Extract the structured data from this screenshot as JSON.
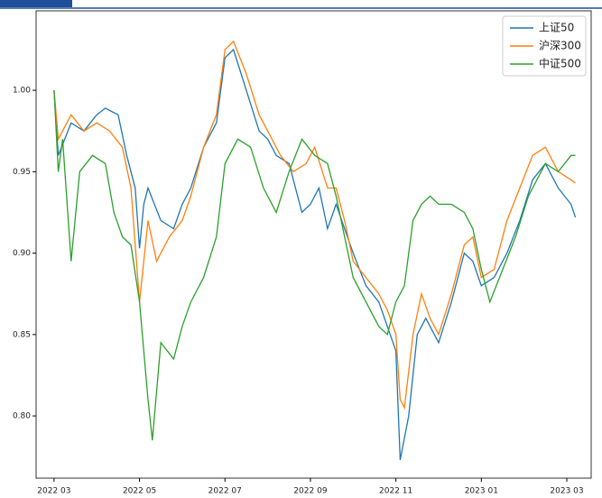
{
  "chart_data": {
    "type": "line",
    "xlim": [
      2.58,
      15.57
    ],
    "xticks": [
      {
        "value": 3,
        "label": "2022 03"
      },
      {
        "value": 5,
        "label": "2022 05"
      },
      {
        "value": 7,
        "label": "2022 07"
      },
      {
        "value": 9,
        "label": "2022 09"
      },
      {
        "value": 11,
        "label": "2022 11"
      },
      {
        "value": 13,
        "label": "2023 01"
      },
      {
        "value": 15,
        "label": "2023 03"
      }
    ],
    "ylim": [
      0.7618,
      1.0488
    ],
    "yticks": [
      {
        "value": 0.8,
        "label": "0.80"
      },
      {
        "value": 0.85,
        "label": "0.85"
      },
      {
        "value": 0.9,
        "label": "0.90"
      },
      {
        "value": 0.95,
        "label": "0.95"
      },
      {
        "value": 1.0,
        "label": "1.00"
      }
    ],
    "legend": "upper right",
    "series": [
      {
        "name": "上证50",
        "color": "#1f77b4",
        "x": [
          3.0,
          3.1,
          3.4,
          3.7,
          4.0,
          4.2,
          4.5,
          4.7,
          4.9,
          5.0,
          5.1,
          5.2,
          5.5,
          5.8,
          6.0,
          6.2,
          6.5,
          6.8,
          7.0,
          7.2,
          7.5,
          7.8,
          8.0,
          8.2,
          8.5,
          8.8,
          9.0,
          9.2,
          9.4,
          9.6,
          9.8,
          10.0,
          10.3,
          10.6,
          10.8,
          11.0,
          11.1,
          11.3,
          11.5,
          11.7,
          12.0,
          12.3,
          12.6,
          12.8,
          13.0,
          13.3,
          13.6,
          13.9,
          14.2,
          14.5,
          14.8,
          15.1,
          15.2
        ],
        "values": [
          1.0,
          0.96,
          0.98,
          0.975,
          0.985,
          0.989,
          0.985,
          0.96,
          0.94,
          0.903,
          0.93,
          0.94,
          0.92,
          0.915,
          0.93,
          0.94,
          0.965,
          0.98,
          1.02,
          1.025,
          1.0,
          0.975,
          0.97,
          0.96,
          0.955,
          0.925,
          0.93,
          0.94,
          0.915,
          0.93,
          0.915,
          0.9,
          0.88,
          0.87,
          0.855,
          0.84,
          0.773,
          0.8,
          0.85,
          0.86,
          0.845,
          0.87,
          0.9,
          0.895,
          0.88,
          0.885,
          0.9,
          0.92,
          0.945,
          0.955,
          0.94,
          0.93,
          0.922
        ]
      },
      {
        "name": "沪深300",
        "color": "#ff7f0e",
        "x": [
          3.0,
          3.1,
          3.4,
          3.7,
          4.0,
          4.3,
          4.6,
          4.8,
          5.0,
          5.2,
          5.4,
          5.7,
          6.0,
          6.2,
          6.5,
          6.8,
          7.0,
          7.2,
          7.5,
          7.8,
          8.0,
          8.3,
          8.6,
          8.9,
          9.1,
          9.4,
          9.6,
          9.8,
          10.0,
          10.3,
          10.6,
          10.8,
          11.0,
          11.1,
          11.2,
          11.4,
          11.6,
          11.8,
          12.0,
          12.3,
          12.6,
          12.8,
          13.0,
          13.3,
          13.6,
          13.9,
          14.2,
          14.5,
          14.8,
          15.1,
          15.2
        ],
        "values": [
          1.0,
          0.97,
          0.985,
          0.975,
          0.98,
          0.975,
          0.965,
          0.94,
          0.87,
          0.92,
          0.895,
          0.91,
          0.92,
          0.935,
          0.965,
          0.985,
          1.025,
          1.03,
          1.01,
          0.985,
          0.975,
          0.96,
          0.95,
          0.955,
          0.965,
          0.94,
          0.94,
          0.92,
          0.895,
          0.885,
          0.875,
          0.865,
          0.85,
          0.81,
          0.805,
          0.85,
          0.875,
          0.86,
          0.85,
          0.875,
          0.905,
          0.91,
          0.885,
          0.89,
          0.92,
          0.94,
          0.96,
          0.965,
          0.95,
          0.945,
          0.943
        ]
      },
      {
        "name": "中证500",
        "color": "#2ca02c",
        "x": [
          3.0,
          3.1,
          3.2,
          3.4,
          3.6,
          3.9,
          4.2,
          4.4,
          4.6,
          4.8,
          5.0,
          5.2,
          5.3,
          5.5,
          5.8,
          6.0,
          6.2,
          6.5,
          6.8,
          7.0,
          7.3,
          7.6,
          7.9,
          8.2,
          8.5,
          8.8,
          9.1,
          9.4,
          9.6,
          9.8,
          10.0,
          10.3,
          10.6,
          10.8,
          11.0,
          11.2,
          11.4,
          11.6,
          11.8,
          12.0,
          12.3,
          12.6,
          12.8,
          13.0,
          13.2,
          13.5,
          13.8,
          14.1,
          14.5,
          14.8,
          15.1,
          15.2
        ],
        "values": [
          1.0,
          0.95,
          0.97,
          0.895,
          0.95,
          0.96,
          0.955,
          0.925,
          0.91,
          0.905,
          0.87,
          0.81,
          0.785,
          0.845,
          0.835,
          0.855,
          0.87,
          0.885,
          0.91,
          0.955,
          0.97,
          0.965,
          0.94,
          0.925,
          0.95,
          0.97,
          0.96,
          0.955,
          0.935,
          0.91,
          0.885,
          0.87,
          0.855,
          0.85,
          0.87,
          0.88,
          0.92,
          0.93,
          0.935,
          0.93,
          0.93,
          0.925,
          0.915,
          0.89,
          0.87,
          0.89,
          0.91,
          0.935,
          0.955,
          0.95,
          0.96,
          0.96
        ]
      }
    ]
  }
}
